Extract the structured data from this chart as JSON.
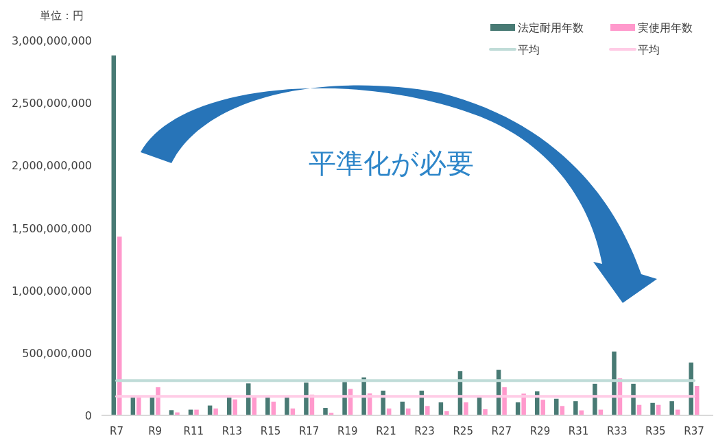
{
  "chart_data": {
    "type": "bar",
    "ylabel": "単位：円",
    "categories": [
      "R7",
      null,
      "R9",
      null,
      "R11",
      null,
      "R13",
      null,
      "R15",
      null,
      "R17",
      null,
      "R19",
      null,
      "R21",
      null,
      "R23",
      null,
      "R25",
      null,
      "R27",
      null,
      "R29",
      null,
      "R31",
      null,
      "R33",
      null,
      "R35",
      null,
      "R37"
    ],
    "series": [
      {
        "name": "法定耐用年数",
        "color": "#487a74",
        "values": [
          2880000000,
          145000000,
          145000000,
          42000000,
          46000000,
          79000000,
          145000000,
          256000000,
          145000000,
          145000000,
          262000000,
          60000000,
          267000000,
          304000000,
          198000000,
          110000000,
          198000000,
          104000000,
          355000000,
          145000000,
          364000000,
          104000000,
          192000000,
          133000000,
          114000000,
          253000000,
          511000000,
          253000000,
          100000000,
          114000000,
          423000000
        ]
      },
      {
        "name": "実使用年数",
        "color": "#ff99cc",
        "values": [
          1430000000,
          145000000,
          225000000,
          24000000,
          46000000,
          55000000,
          128000000,
          145000000,
          110000000,
          55000000,
          166000000,
          20000000,
          212000000,
          176000000,
          55000000,
          55000000,
          75000000,
          33000000,
          104000000,
          49000000,
          225000000,
          174000000,
          125000000,
          75000000,
          40000000,
          46000000,
          296000000,
          84000000,
          84000000,
          46000000,
          236000000
        ]
      },
      {
        "name": "平均",
        "type": "line",
        "color": "#c0dcd8",
        "values": [
          278000000,
          278000000,
          278000000,
          278000000,
          278000000,
          278000000,
          278000000,
          278000000,
          278000000,
          278000000,
          278000000,
          278000000,
          278000000,
          278000000,
          278000000,
          278000000,
          278000000,
          278000000,
          278000000,
          278000000,
          278000000,
          278000000,
          278000000,
          278000000,
          278000000,
          278000000,
          278000000,
          278000000,
          278000000,
          278000000,
          278000000
        ]
      },
      {
        "name": "平均",
        "type": "line",
        "color": "#ffcce6",
        "values": [
          152000000,
          152000000,
          152000000,
          152000000,
          152000000,
          152000000,
          152000000,
          152000000,
          152000000,
          152000000,
          152000000,
          152000000,
          152000000,
          152000000,
          152000000,
          152000000,
          152000000,
          152000000,
          152000000,
          152000000,
          152000000,
          152000000,
          152000000,
          152000000,
          152000000,
          152000000,
          152000000,
          152000000,
          152000000,
          152000000,
          152000000
        ]
      }
    ],
    "ylim": [
      0,
      3000000000
    ],
    "yticks": [
      0,
      {
        "value": 500000000,
        "label": "500,000,000"
      },
      {
        "value": 1000000000,
        "label": "1,000,000,000"
      },
      {
        "value": 1500000000,
        "label": "1,500,000,000"
      },
      {
        "value": 2000000000,
        "label": "2,000,000,000"
      },
      {
        "value": 2500000000,
        "label": "2,500,000,000"
      },
      {
        "value": 3000000000,
        "label": "3,000,000,000"
      }
    ],
    "legend": "top right",
    "grid": false,
    "annotations": [
      "平準化が必要"
    ]
  }
}
